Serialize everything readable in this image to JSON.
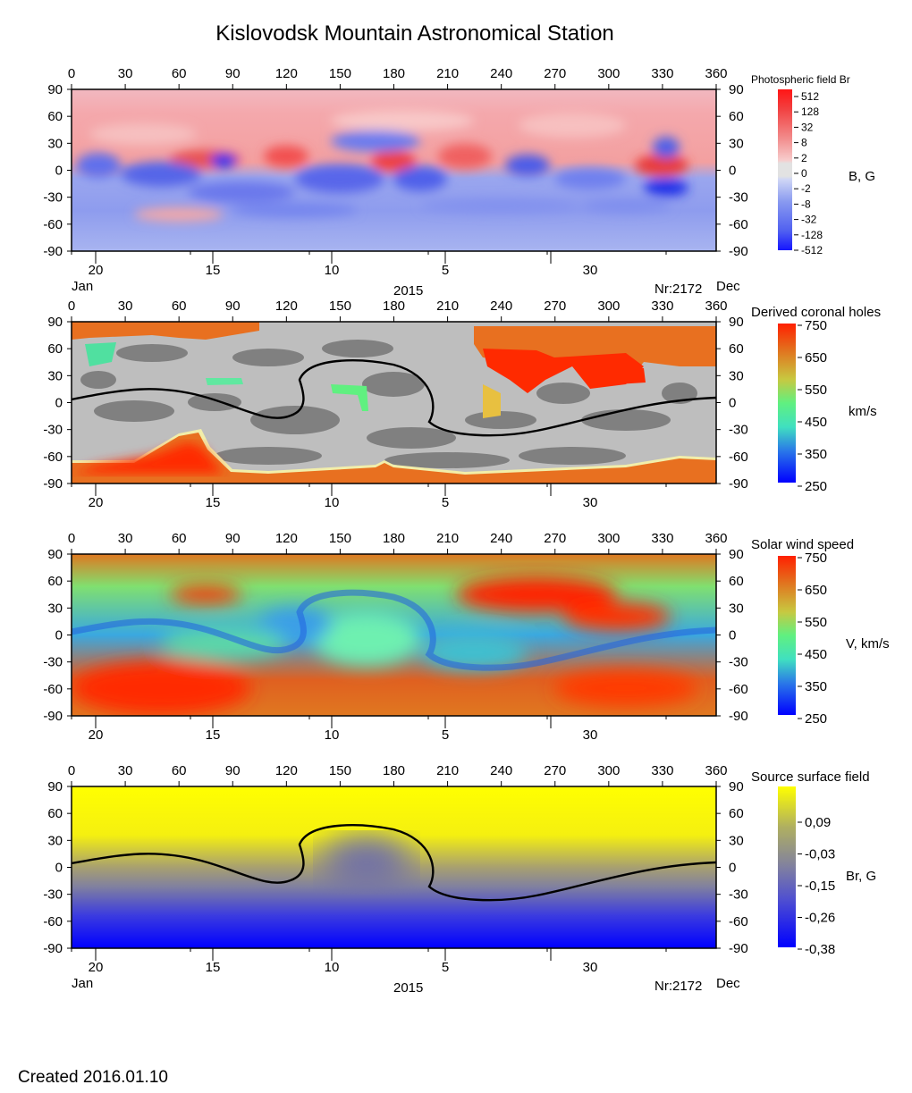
{
  "title": "Kislovodsk Mountain Astronomical Station",
  "created": "Created  2016.01.10",
  "axes": {
    "longitude_ticks": [
      "0",
      "30",
      "60",
      "90",
      "120",
      "150",
      "180",
      "210",
      "240",
      "270",
      "300",
      "330",
      "360"
    ],
    "latitude_ticks": [
      "90",
      "60",
      "30",
      "0",
      "-30",
      "-60",
      "-90"
    ],
    "date_ticks": [
      "20",
      "15",
      "10",
      "5",
      "30"
    ],
    "month_left": "Jan",
    "month_right": "Dec",
    "year": "2015",
    "rotation": "Nr:2172"
  },
  "chart_data": [
    {
      "type": "heatmap",
      "name": "photospheric-field",
      "title": "Photospheric field Br",
      "unit": "B, G",
      "xlabel": "",
      "ylabel": "",
      "xlim": [
        0,
        360
      ],
      "ylim": [
        -90,
        90
      ],
      "colorbar_ticks": [
        "512",
        "128",
        "32",
        "8",
        "2",
        "0",
        "-2",
        "-8",
        "-32",
        "-128",
        "-512"
      ],
      "colorscale": [
        "#1515ff",
        "#5060f0",
        "#8899f0",
        "#aab7f2",
        "#cfd6f5",
        "#e2e2e2",
        "#f7cccc",
        "#f7aaaa",
        "#f28a8a",
        "#f24040",
        "#ff1515"
      ]
    },
    {
      "type": "heatmap",
      "name": "derived-coronal-holes",
      "title": "Derived coronal holes",
      "unit": "km/s",
      "xlim": [
        0,
        360
      ],
      "ylim": [
        -90,
        90
      ],
      "colorbar_ticks": [
        "750",
        "650",
        "550",
        "450",
        "350",
        "250"
      ],
      "colorscale": [
        "#0000ff",
        "#2a78e8",
        "#40e0c0",
        "#60f080",
        "#c8c840",
        "#e07820",
        "#ff2000"
      ],
      "neutral_line": [
        [
          0,
          10
        ],
        [
          30,
          16
        ],
        [
          60,
          16
        ],
        [
          90,
          8
        ],
        [
          110,
          -5
        ],
        [
          120,
          -15
        ],
        [
          130,
          -13
        ],
        [
          140,
          10
        ],
        [
          145,
          35
        ],
        [
          165,
          45
        ],
        [
          180,
          40
        ],
        [
          193,
          25
        ],
        [
          200,
          -5
        ],
        [
          212,
          -28
        ],
        [
          240,
          -35
        ],
        [
          265,
          -33
        ],
        [
          290,
          -15
        ],
        [
          320,
          0
        ],
        [
          345,
          8
        ],
        [
          360,
          8
        ]
      ]
    },
    {
      "type": "heatmap",
      "name": "solar-wind-speed",
      "title": "Solar wind speed",
      "unit": "V, km/s",
      "xlim": [
        0,
        360
      ],
      "ylim": [
        -90,
        90
      ],
      "colorbar_ticks": [
        "750",
        "650",
        "550",
        "450",
        "350",
        "250"
      ],
      "colorscale": [
        "#0000ff",
        "#2a78e8",
        "#40e0c0",
        "#60f080",
        "#c8c840",
        "#e07820",
        "#ff2000"
      ]
    },
    {
      "type": "heatmap",
      "name": "source-surface-field",
      "title": "Source surface field",
      "unit": "Br, G",
      "xlim": [
        0,
        360
      ],
      "ylim": [
        -90,
        90
      ],
      "colorbar_ticks": [
        "0,09",
        "-0,03",
        "-0,15",
        "-0,26",
        "-0,38"
      ],
      "colorscale": [
        "#0000ff",
        "#5050d0",
        "#8080a0",
        "#b0b060",
        "#ffff00"
      ],
      "neutral_line": [
        [
          0,
          8
        ],
        [
          30,
          16
        ],
        [
          60,
          16
        ],
        [
          90,
          8
        ],
        [
          110,
          -5
        ],
        [
          120,
          -15
        ],
        [
          130,
          -13
        ],
        [
          140,
          10
        ],
        [
          145,
          35
        ],
        [
          165,
          45
        ],
        [
          180,
          40
        ],
        [
          193,
          25
        ],
        [
          200,
          -5
        ],
        [
          212,
          -28
        ],
        [
          240,
          -35
        ],
        [
          265,
          -33
        ],
        [
          290,
          -15
        ],
        [
          320,
          0
        ],
        [
          345,
          8
        ],
        [
          360,
          8
        ]
      ]
    }
  ]
}
